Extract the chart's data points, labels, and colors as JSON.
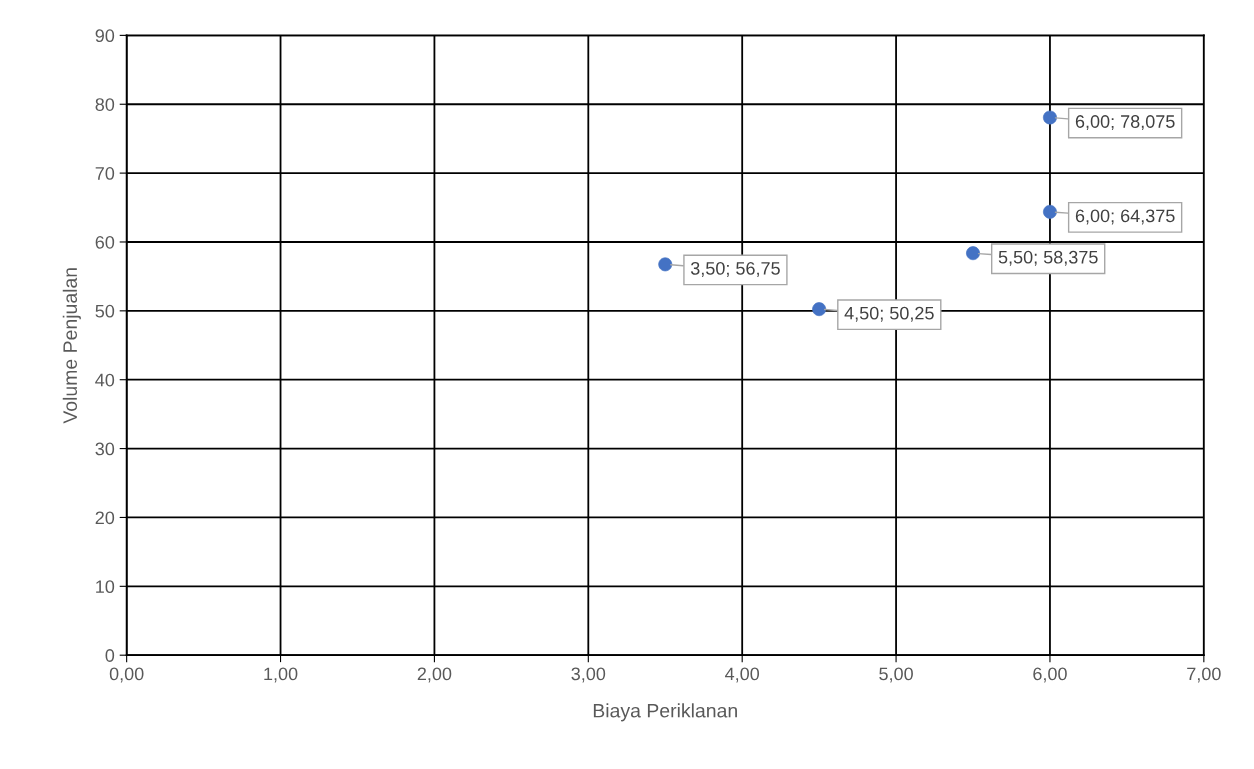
{
  "chart_data": {
    "type": "scatter",
    "xlabel": "Biaya Periklanan",
    "ylabel": "Volume Penjualan",
    "series": [
      {
        "color": "#4472c4",
        "x": [
          3.5,
          4.5,
          5.5,
          6.0,
          6.0
        ],
        "values": [
          56.75,
          50.25,
          58.375,
          64.375,
          78.075
        ],
        "value_labels": [
          "3,50; 56,75",
          "4,50; 50,25",
          "5,50; 58,375",
          "6,00; 64,375",
          "6,00; 78,075"
        ]
      }
    ],
    "xlim": [
      0,
      7
    ],
    "xticks": [
      {
        "value": 0,
        "label": "0,00"
      },
      {
        "value": 1,
        "label": "1,00"
      },
      {
        "value": 2,
        "label": "2,00"
      },
      {
        "value": 3,
        "label": "3,00"
      },
      {
        "value": 4,
        "label": "4,00"
      },
      {
        "value": 5,
        "label": "5,00"
      },
      {
        "value": 6,
        "label": "6,00"
      },
      {
        "value": 7,
        "label": "7,00"
      }
    ],
    "ylim": [
      0,
      90
    ],
    "yticks": [
      0,
      10,
      20,
      30,
      40,
      50,
      60,
      70,
      80,
      90
    ],
    "grid": true,
    "marker": "circle"
  }
}
